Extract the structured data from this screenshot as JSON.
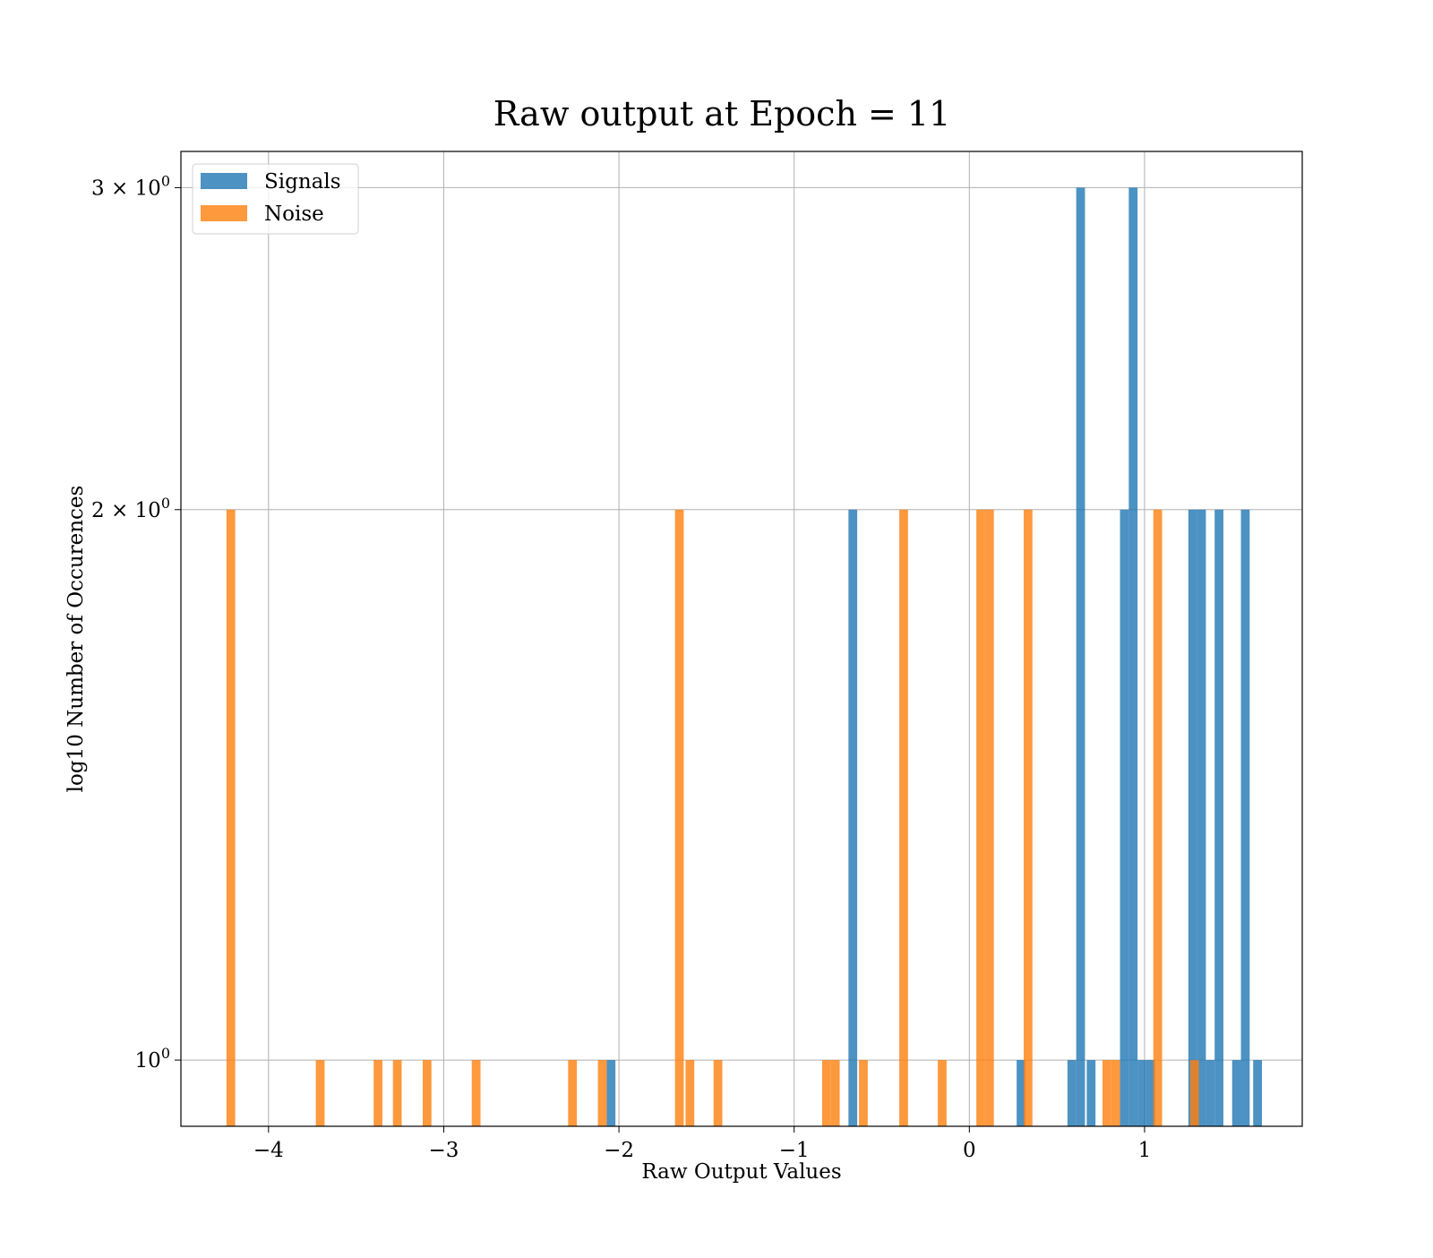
{
  "chart_data": {
    "type": "bar",
    "title": "Raw output at Epoch = 11",
    "xlabel": "Raw Output Values",
    "ylabel": "log10 Number of Occurences",
    "xlim": [
      -4.5,
      1.9
    ],
    "ylim": [
      0.92,
      3.14
    ],
    "yscale": "log",
    "grid": true,
    "legend_position": "top-left",
    "x_ticks": [
      {
        "value": -4,
        "label": "−4"
      },
      {
        "value": -3,
        "label": "−3"
      },
      {
        "value": -2,
        "label": "−2"
      },
      {
        "value": -1,
        "label": "−1"
      },
      {
        "value": 0,
        "label": "0"
      },
      {
        "value": 1,
        "label": "1"
      }
    ],
    "y_ticks": [
      {
        "value": 1,
        "label": "10",
        "exp": "0"
      },
      {
        "value": 2,
        "label": "2 × 10",
        "exp": "0"
      },
      {
        "value": 3,
        "label": "3 × 10",
        "exp": "0"
      }
    ],
    "series": [
      {
        "name": "Signals",
        "color": "#1f77b4",
        "bins": [
          {
            "x0": -2.07,
            "x1": -2.02,
            "count": 1
          },
          {
            "x0": -0.69,
            "x1": -0.64,
            "count": 2
          },
          {
            "x0": 0.27,
            "x1": 0.32,
            "count": 1
          },
          {
            "x0": 0.56,
            "x1": 0.61,
            "count": 1
          },
          {
            "x0": 0.61,
            "x1": 0.66,
            "count": 3
          },
          {
            "x0": 0.67,
            "x1": 0.72,
            "count": 1
          },
          {
            "x0": 0.86,
            "x1": 0.91,
            "count": 2
          },
          {
            "x0": 0.91,
            "x1": 0.96,
            "count": 3
          },
          {
            "x0": 0.96,
            "x1": 1.01,
            "count": 1
          },
          {
            "x0": 1.01,
            "x1": 1.06,
            "count": 1
          },
          {
            "x0": 1.25,
            "x1": 1.3,
            "count": 2
          },
          {
            "x0": 1.3,
            "x1": 1.35,
            "count": 2
          },
          {
            "x0": 1.35,
            "x1": 1.4,
            "count": 1
          },
          {
            "x0": 1.4,
            "x1": 1.45,
            "count": 2
          },
          {
            "x0": 1.5,
            "x1": 1.55,
            "count": 1
          },
          {
            "x0": 1.55,
            "x1": 1.6,
            "count": 2
          },
          {
            "x0": 1.62,
            "x1": 1.67,
            "count": 1
          }
        ]
      },
      {
        "name": "Noise",
        "color": "#ff7f0e",
        "bins": [
          {
            "x0": -4.24,
            "x1": -4.19,
            "count": 2
          },
          {
            "x0": -3.73,
            "x1": -3.68,
            "count": 1
          },
          {
            "x0": -3.4,
            "x1": -3.35,
            "count": 1
          },
          {
            "x0": -3.29,
            "x1": -3.24,
            "count": 1
          },
          {
            "x0": -3.12,
            "x1": -3.07,
            "count": 1
          },
          {
            "x0": -2.84,
            "x1": -2.79,
            "count": 1
          },
          {
            "x0": -2.29,
            "x1": -2.24,
            "count": 1
          },
          {
            "x0": -2.12,
            "x1": -2.07,
            "count": 1
          },
          {
            "x0": -1.68,
            "x1": -1.63,
            "count": 2
          },
          {
            "x0": -1.62,
            "x1": -1.57,
            "count": 1
          },
          {
            "x0": -1.46,
            "x1": -1.41,
            "count": 1
          },
          {
            "x0": -0.84,
            "x1": -0.79,
            "count": 1
          },
          {
            "x0": -0.79,
            "x1": -0.74,
            "count": 1
          },
          {
            "x0": -0.63,
            "x1": -0.58,
            "count": 1
          },
          {
            "x0": -0.4,
            "x1": -0.35,
            "count": 2
          },
          {
            "x0": -0.18,
            "x1": -0.13,
            "count": 1
          },
          {
            "x0": 0.04,
            "x1": 0.09,
            "count": 2
          },
          {
            "x0": 0.09,
            "x1": 0.14,
            "count": 2
          },
          {
            "x0": 0.31,
            "x1": 0.36,
            "count": 2
          },
          {
            "x0": 0.76,
            "x1": 0.81,
            "count": 1
          },
          {
            "x0": 0.81,
            "x1": 0.86,
            "count": 1
          },
          {
            "x0": 1.05,
            "x1": 1.1,
            "count": 2
          },
          {
            "x0": 1.26,
            "x1": 1.31,
            "count": 1
          }
        ]
      }
    ]
  }
}
